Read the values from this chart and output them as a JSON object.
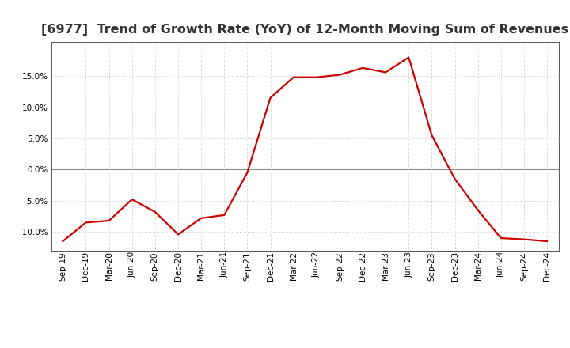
{
  "title": "[6977]  Trend of Growth Rate (YoY) of 12-Month Moving Sum of Revenues",
  "x_labels": [
    "Sep-19",
    "Dec-19",
    "Mar-20",
    "Jun-20",
    "Sep-20",
    "Dec-20",
    "Mar-21",
    "Jun-21",
    "Sep-21",
    "Dec-21",
    "Mar-22",
    "Jun-22",
    "Sep-22",
    "Dec-22",
    "Mar-23",
    "Jun-23",
    "Sep-23",
    "Dec-23",
    "Mar-24",
    "Jun-24",
    "Sep-24",
    "Dec-24"
  ],
  "y_values": [
    -11.5,
    -8.5,
    -8.2,
    -4.8,
    -6.8,
    -10.4,
    -7.8,
    -7.3,
    -0.5,
    11.5,
    14.8,
    14.8,
    15.2,
    16.3,
    15.6,
    18.0,
    5.5,
    -1.5,
    -6.5,
    -11.0,
    -11.2,
    -11.5
  ],
  "line_color": "#cc0000",
  "background_color": "#ffffff",
  "grid_color": "#bbbbbb",
  "ylim": [
    -13.0,
    20.5
  ],
  "yticks": [
    -10.0,
    -5.0,
    0.0,
    5.0,
    10.0,
    15.0
  ],
  "title_fontsize": 11.5,
  "tick_fontsize": 7.5
}
